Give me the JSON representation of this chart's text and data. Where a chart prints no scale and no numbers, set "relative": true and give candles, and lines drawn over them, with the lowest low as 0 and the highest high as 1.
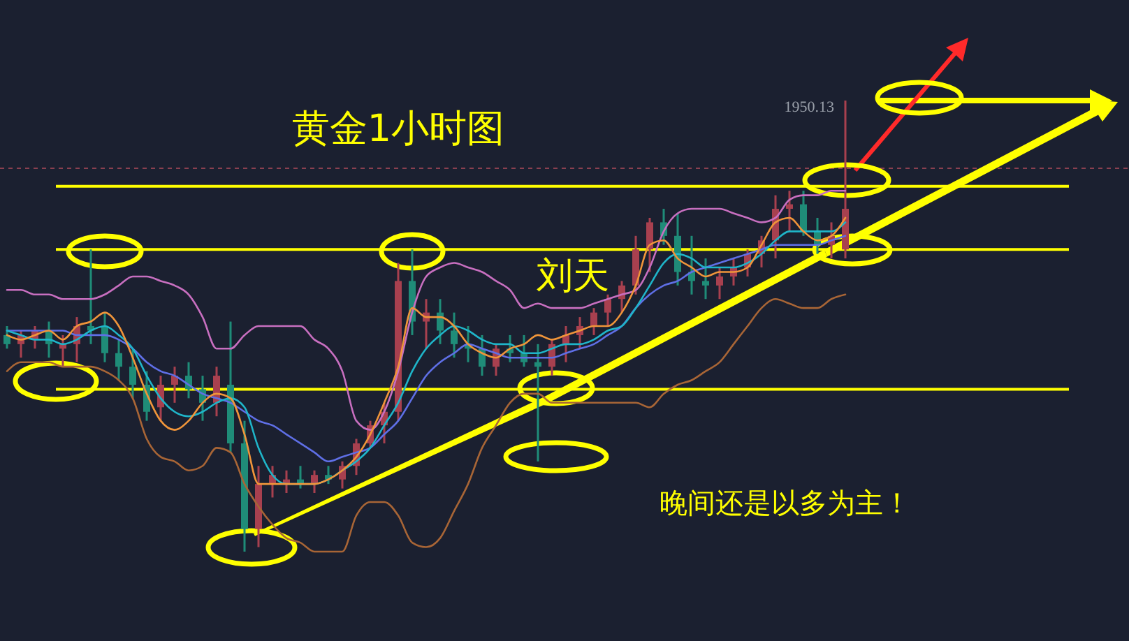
{
  "chart_data": {
    "type": "candlestick",
    "title": "黄金1小时图",
    "relative": true,
    "categories": [
      null,
      null,
      null,
      null,
      null,
      null,
      null,
      null,
      null,
      null,
      null,
      null,
      null,
      null,
      null,
      null,
      null,
      null,
      null,
      null,
      null,
      null,
      null,
      null,
      null,
      null,
      null,
      null,
      null,
      null,
      null,
      null,
      null,
      null,
      null,
      null,
      null,
      null,
      null,
      null,
      null,
      null,
      null,
      null,
      null,
      null,
      null,
      null,
      null,
      null,
      null,
      null,
      null,
      null,
      null,
      null,
      null,
      null,
      null,
      null,
      null
    ],
    "ohlc": [
      [
        0.48,
        0.5,
        0.45,
        0.46
      ],
      [
        0.46,
        0.49,
        0.43,
        0.48
      ],
      [
        0.47,
        0.5,
        0.45,
        0.49
      ],
      [
        0.49,
        0.51,
        0.43,
        0.46
      ],
      [
        0.45,
        0.48,
        0.41,
        0.46
      ],
      [
        0.46,
        0.52,
        0.42,
        0.5
      ],
      [
        0.5,
        0.67,
        0.46,
        0.49
      ],
      [
        0.5,
        0.53,
        0.42,
        0.44
      ],
      [
        0.44,
        0.47,
        0.38,
        0.41
      ],
      [
        0.41,
        0.45,
        0.34,
        0.37
      ],
      [
        0.37,
        0.4,
        0.29,
        0.31
      ],
      [
        0.32,
        0.39,
        0.29,
        0.37
      ],
      [
        0.37,
        0.41,
        0.33,
        0.39
      ],
      [
        0.39,
        0.42,
        0.34,
        0.36
      ],
      [
        0.36,
        0.39,
        0.29,
        0.33
      ],
      [
        0.33,
        0.41,
        0.3,
        0.39
      ],
      [
        0.37,
        0.51,
        0.22,
        0.24
      ],
      [
        0.24,
        0.29,
        0,
        0.05
      ],
      [
        0.05,
        0.19,
        0.01,
        0.15
      ],
      [
        0.15,
        0.19,
        0.12,
        0.17
      ],
      [
        0.15,
        0.18,
        0.13,
        0.16
      ],
      [
        0.16,
        0.19,
        0.14,
        0.15
      ],
      [
        0.15,
        0.18,
        0.13,
        0.17
      ],
      [
        0.17,
        0.19,
        0.15,
        0.16
      ],
      [
        0.16,
        0.2,
        0.14,
        0.19
      ],
      [
        0.19,
        0.25,
        0.17,
        0.24
      ],
      [
        0.24,
        0.29,
        0.23,
        0.28
      ],
      [
        0.28,
        0.33,
        0.24,
        0.31
      ],
      [
        0.31,
        0.64,
        0.29,
        0.6
      ],
      [
        0.6,
        0.67,
        0.48,
        0.51
      ],
      [
        0.51,
        0.56,
        0.45,
        0.53
      ],
      [
        0.53,
        0.56,
        0.46,
        0.49
      ],
      [
        0.49,
        0.53,
        0.43,
        0.46
      ],
      [
        0.46,
        0.5,
        0.42,
        0.45
      ],
      [
        0.45,
        0.48,
        0.39,
        0.41
      ],
      [
        0.41,
        0.46,
        0.39,
        0.45
      ],
      [
        0.45,
        0.48,
        0.42,
        0.44
      ],
      [
        0.44,
        0.48,
        0.41,
        0.42
      ],
      [
        0.42,
        0.46,
        0.2,
        0.41
      ],
      [
        0.41,
        0.47,
        0.39,
        0.46
      ],
      [
        0.46,
        0.5,
        0.42,
        0.48
      ],
      [
        0.48,
        0.52,
        0.45,
        0.5
      ],
      [
        0.5,
        0.54,
        0.48,
        0.53
      ],
      [
        0.53,
        0.57,
        0.5,
        0.56
      ],
      [
        0.56,
        0.6,
        0.53,
        0.59
      ],
      [
        0.59,
        0.7,
        0.57,
        0.67
      ],
      [
        0.67,
        0.74,
        0.62,
        0.73
      ],
      [
        0.73,
        0.76,
        0.68,
        0.7
      ],
      [
        0.7,
        0.75,
        0.59,
        0.62
      ],
      [
        0.62,
        0.7,
        0.57,
        0.6
      ],
      [
        0.6,
        0.65,
        0.56,
        0.59
      ],
      [
        0.59,
        0.63,
        0.56,
        0.61
      ],
      [
        0.61,
        0.65,
        0.59,
        0.63
      ],
      [
        0.63,
        0.67,
        0.61,
        0.66
      ],
      [
        0.66,
        0.7,
        0.63,
        0.69
      ],
      [
        0.69,
        0.79,
        0.65,
        0.76
      ],
      [
        0.76,
        0.8,
        0.71,
        0.77
      ],
      [
        0.77,
        0.8,
        0.7,
        0.71
      ],
      [
        0.71,
        0.74,
        0.66,
        0.68
      ],
      [
        0.68,
        0.73,
        0.65,
        0.7
      ],
      [
        0.67,
        1,
        0.65,
        0.76
      ]
    ],
    "series": [
      {
        "type": "line",
        "color": "#c86fc0",
        "values": [
          0.58,
          0.58,
          0.57,
          0.57,
          0.56,
          0.56,
          0.56,
          0.57,
          0.59,
          0.61,
          0.61,
          0.6,
          0.59,
          0.57,
          0.52,
          0.45,
          0.45,
          0.48,
          0.5,
          0.5,
          0.5,
          0.5,
          0.47,
          0.45,
          0.4,
          0.29,
          0.27,
          0.31,
          0.4,
          0.53,
          0.61,
          0.63,
          0.64,
          0.63,
          0.62,
          0.6,
          0.58,
          0.54,
          0.55,
          0.54,
          0.54,
          0.54,
          0.55,
          0.56,
          0.57,
          0.58,
          0.63,
          0.71,
          0.75,
          0.76,
          0.76,
          0.76,
          0.75,
          0.74,
          0.73,
          0.74,
          0.78,
          0.79,
          0.79,
          0.8,
          0.8
        ]
      },
      {
        "type": "line",
        "color": "#a86536",
        "values": [
          0.4,
          0.42,
          0.42,
          0.42,
          0.41,
          0.41,
          0.41,
          0.4,
          0.38,
          0.34,
          0.25,
          0.21,
          0.2,
          0.18,
          0.19,
          0.23,
          0.22,
          0.15,
          0.1,
          0.06,
          0.03,
          0.02,
          0,
          0,
          0,
          0.08,
          0.11,
          0.11,
          0.08,
          0.02,
          0.01,
          0.03,
          0.09,
          0.15,
          0.23,
          0.28,
          0.33,
          0.35,
          0.35,
          0.33,
          0.33,
          0.33,
          0.33,
          0.33,
          0.33,
          0.33,
          0.32,
          0.35,
          0.37,
          0.38,
          0.4,
          0.42,
          0.46,
          0.5,
          0.54,
          0.56,
          0.55,
          0.54,
          0.54,
          0.56,
          0.57
        ]
      },
      {
        "type": "line",
        "color": "#5f6fe6",
        "values": [
          0.49,
          0.49,
          0.49,
          0.49,
          0.49,
          0.48,
          0.48,
          0.48,
          0.47,
          0.45,
          0.42,
          0.4,
          0.39,
          0.37,
          0.35,
          0.34,
          0.33,
          0.31,
          0.29,
          0.28,
          0.26,
          0.24,
          0.22,
          0.2,
          0.21,
          0.22,
          0.23,
          0.26,
          0.29,
          0.34,
          0.39,
          0.42,
          0.44,
          0.46,
          0.45,
          0.44,
          0.43,
          0.43,
          0.43,
          0.43,
          0.44,
          0.45,
          0.46,
          0.48,
          0.5,
          0.54,
          0.57,
          0.59,
          0.6,
          0.62,
          0.63,
          0.64,
          0.65,
          0.66,
          0.67,
          0.68,
          0.68,
          0.68,
          0.68,
          0.69,
          0.7
        ]
      },
      {
        "type": "line",
        "color": "#1fb5c9",
        "values": [
          0.49,
          0.48,
          0.47,
          0.47,
          0.46,
          0.47,
          0.49,
          0.5,
          0.48,
          0.45,
          0.39,
          0.34,
          0.31,
          0.3,
          0.31,
          0.33,
          0.34,
          0.32,
          0.23,
          0.17,
          0.15,
          0.15,
          0.15,
          0.16,
          0.18,
          0.2,
          0.23,
          0.28,
          0.33,
          0.4,
          0.45,
          0.48,
          0.5,
          0.49,
          0.47,
          0.46,
          0.46,
          0.44,
          0.44,
          0.45,
          0.46,
          0.46,
          0.47,
          0.49,
          0.5,
          0.54,
          0.59,
          0.64,
          0.66,
          0.65,
          0.63,
          0.63,
          0.63,
          0.64,
          0.66,
          0.69,
          0.71,
          0.71,
          0.71,
          0.71,
          0.73
        ]
      },
      {
        "type": "line",
        "color": "#f0953a",
        "values": [
          0.48,
          0.47,
          0.48,
          0.49,
          0.47,
          0.5,
          0.51,
          0.53,
          0.5,
          0.43,
          0.35,
          0.29,
          0.27,
          0.29,
          0.33,
          0.35,
          0.34,
          0.26,
          0.15,
          0.15,
          0.15,
          0.15,
          0.15,
          0.16,
          0.18,
          0.21,
          0.26,
          0.33,
          0.41,
          0.54,
          0.52,
          0.52,
          0.5,
          0.46,
          0.44,
          0.43,
          0.45,
          0.46,
          0.48,
          0.47,
          0.48,
          0.49,
          0.5,
          0.5,
          0.53,
          0.59,
          0.68,
          0.69,
          0.65,
          0.63,
          0.61,
          0.62,
          0.62,
          0.63,
          0.68,
          0.73,
          0.74,
          0.71,
          0.69,
          0.7,
          0.74
        ]
      }
    ],
    "ref_lines": [
      {
        "axis": "y",
        "value": 0.67,
        "color": "#ffff00"
      },
      {
        "axis": "y",
        "value": 0.36,
        "color": "#ffff00"
      },
      {
        "axis": "y",
        "value": 0.81,
        "color": "#ffff00"
      },
      {
        "axis": "y",
        "value": 0.85,
        "color": "#8a4050",
        "line_style": "dashed"
      }
    ],
    "annotations": [
      "1950.13",
      "刘天",
      "晚间还是以多为主！"
    ]
  }
}
